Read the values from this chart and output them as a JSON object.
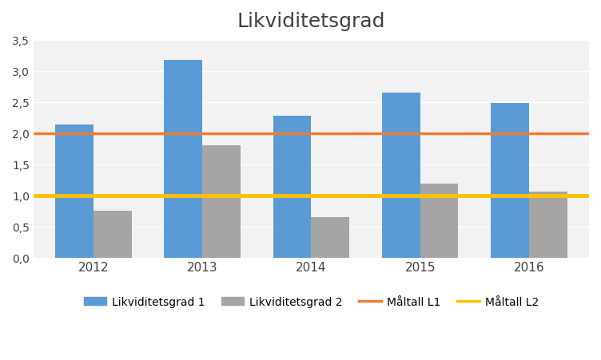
{
  "title": "Likviditetsgrad",
  "categories": [
    "2012",
    "2013",
    "2014",
    "2015",
    "2016"
  ],
  "likviditetsgrad1": [
    2.13,
    3.17,
    2.28,
    2.65,
    2.48
  ],
  "likviditetsgrad2": [
    0.75,
    1.8,
    0.65,
    1.19,
    1.06
  ],
  "maltall_L1": 2.0,
  "maltall_L2": 1.0,
  "color_bar1": "#5B9BD5",
  "color_bar2": "#A5A5A5",
  "color_L1": "#ED7D31",
  "color_L2": "#FFC000",
  "ylim": [
    0,
    3.5
  ],
  "yticks": [
    0.0,
    0.5,
    1.0,
    1.5,
    2.0,
    2.5,
    3.0,
    3.5
  ],
  "ytick_labels": [
    "0,0",
    "0,5",
    "1,0",
    "1,5",
    "2,0",
    "2,5",
    "3,0",
    "3,5"
  ],
  "title_fontsize": 18,
  "legend_labels": [
    "Likviditetsgrad 1",
    "Likviditetsgrad 2",
    "Måltall L1",
    "Måltall L2"
  ],
  "background_color": "#FFFFFF",
  "plot_bg_color": "#F2F2F2",
  "grid_color": "#FFFFFF"
}
